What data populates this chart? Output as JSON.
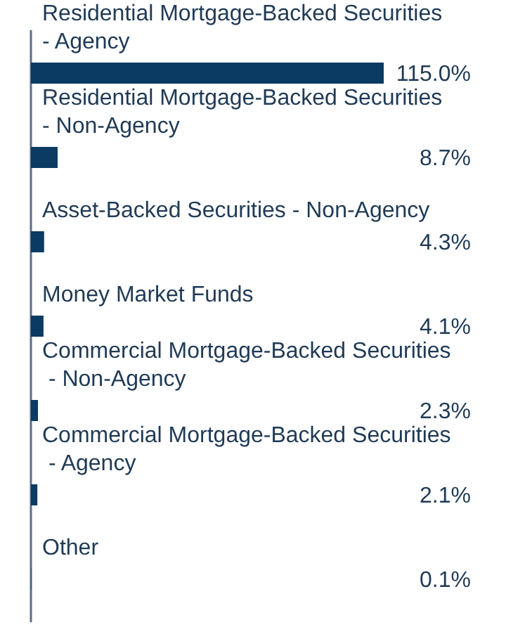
{
  "chart_data": {
    "type": "bar",
    "orientation": "horizontal",
    "color": "#0b3a63",
    "categories": [
      "Residential Mortgage-Backed Securities - Agency",
      "Residential Mortgage-Backed Securities - Non-Agency",
      "Asset-Backed Securities - Non-Agency",
      "Money Market Funds",
      "Commercial Mortgage-Backed Securities - Non-Agency",
      "Commercial Mortgage-Backed Securities - Agency",
      "Other"
    ],
    "values": [
      115.0,
      8.7,
      4.3,
      4.1,
      2.3,
      2.1,
      0.1
    ],
    "value_labels": [
      "115.0%",
      "8.7%",
      "4.3%",
      "4.1%",
      "2.3%",
      "2.1%",
      "0.1%"
    ]
  }
}
